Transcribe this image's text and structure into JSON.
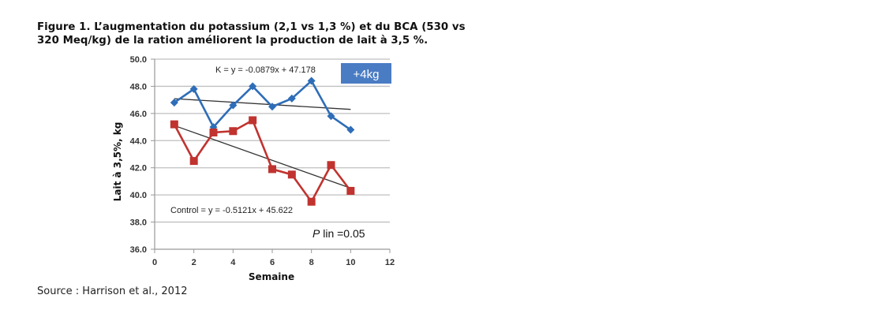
{
  "caption": {
    "line1": "Figure 1. L’augmentation du potassium (2,1 vs 1,3 %) et du BCA (530 vs",
    "line2": "320 Meq/kg) de la ration améliorent la production de lait à 3,5 %."
  },
  "source": "Source : Harrison et al., 2012",
  "colors": {
    "k_series": "#2E6DB8",
    "control_series": "#C0332F",
    "trendline": "#333333",
    "grid": "#BFBFBF",
    "badge": "#4A7CC4"
  },
  "annotations": {
    "k_equation": "K = y = -0.0879x + 47.178",
    "control_equation": "Control = y = -0.5121x + 45.622",
    "badge": "+4kg",
    "p_italic": "P",
    "p_rest": " lin =0.05"
  },
  "chart_data": {
    "type": "line",
    "title": "",
    "xlabel": "Semaine",
    "ylabel": "Lait à 3,5%, kg",
    "xlim": [
      0,
      12
    ],
    "ylim": [
      36.0,
      50.0
    ],
    "x_ticks": [
      "0",
      "2",
      "4",
      "6",
      "8",
      "10",
      "12"
    ],
    "y_ticks": [
      "36.0",
      "38.0",
      "40.0",
      "42.0",
      "44.0",
      "46.0",
      "48.0",
      "50.0"
    ],
    "grid": true,
    "legend": "none (series identified by equation labels)",
    "x": [
      1,
      2,
      3,
      4,
      5,
      6,
      7,
      8,
      9,
      10
    ],
    "series": [
      {
        "name": "K",
        "marker": "diamond",
        "color": "#2E6DB8",
        "values": [
          46.8,
          47.8,
          45.0,
          46.6,
          48.0,
          46.5,
          47.1,
          48.4,
          45.8,
          44.8
        ],
        "trendline": {
          "equation": "y = -0.0879x + 47.178",
          "slope": -0.0879,
          "intercept": 47.178
        }
      },
      {
        "name": "Control",
        "marker": "square",
        "color": "#C0332F",
        "values": [
          45.2,
          42.5,
          44.6,
          44.7,
          45.5,
          41.9,
          41.5,
          39.5,
          42.2,
          40.3
        ],
        "trendline": {
          "equation": "y = -0.5121x + 45.622",
          "slope": -0.5121,
          "intercept": 45.622
        }
      }
    ],
    "annotations": [
      "K = y = -0.0879x + 47.178",
      "Control = y = -0.5121x + 45.622",
      "+4kg",
      "P lin =0.05"
    ]
  }
}
